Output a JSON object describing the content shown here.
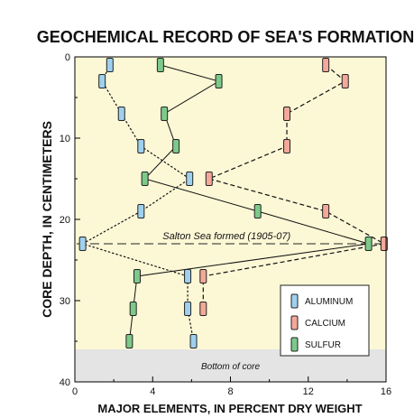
{
  "chart_data": {
    "type": "line",
    "title": "GEOCHEMICAL RECORD OF SEA'S FORMATION",
    "xlabel": "MAJOR ELEMENTS, IN PERCENT DRY WEIGHT",
    "ylabel": "CORE DEPTH, IN CENTIMETERS",
    "xlim": [
      0,
      16
    ],
    "ylim": [
      0,
      40
    ],
    "y_inverted": true,
    "x_ticks": [
      "0",
      "4",
      "8",
      "12",
      "16"
    ],
    "y_ticks": [
      "0",
      "10",
      "20",
      "30",
      "40"
    ],
    "grid": false,
    "legend_position": "bottom-right",
    "series": [
      {
        "name": "ALUMINUM",
        "color": "#9fd0ee",
        "line_style": "dotted",
        "points": [
          [
            1.8,
            1
          ],
          [
            1.4,
            3
          ],
          [
            2.4,
            7
          ],
          [
            3.4,
            11
          ],
          [
            5.9,
            15
          ],
          [
            3.4,
            19
          ],
          [
            0.4,
            23
          ],
          [
            5.8,
            27
          ],
          [
            5.8,
            31
          ],
          [
            6.1,
            35
          ]
        ]
      },
      {
        "name": "CALCIUM",
        "color": "#f4a89a",
        "line_style": "dashed",
        "points": [
          [
            12.9,
            1
          ],
          [
            13.9,
            3
          ],
          [
            10.9,
            7
          ],
          [
            10.9,
            11
          ],
          [
            6.9,
            15
          ],
          [
            12.9,
            19
          ],
          [
            15.9,
            23
          ],
          [
            6.6,
            27
          ],
          [
            6.6,
            31
          ]
        ]
      },
      {
        "name": "SULFUR",
        "color": "#7dc98a",
        "line_style": "solid",
        "points": [
          [
            4.4,
            1
          ],
          [
            7.4,
            3
          ],
          [
            4.6,
            7
          ],
          [
            5.2,
            11
          ],
          [
            3.6,
            15
          ],
          [
            9.4,
            19
          ],
          [
            15.1,
            23
          ],
          [
            3.2,
            27
          ],
          [
            3.0,
            31
          ],
          [
            2.8,
            35
          ]
        ]
      }
    ],
    "annotations": [
      {
        "text": "Salton Sea formed (1905-07)",
        "y": 23
      },
      {
        "text": "Bottom of core",
        "y": 38
      }
    ],
    "colors": {
      "plot_bg": "#fcf8d6",
      "bottom_band": "#e4e4e4"
    }
  }
}
